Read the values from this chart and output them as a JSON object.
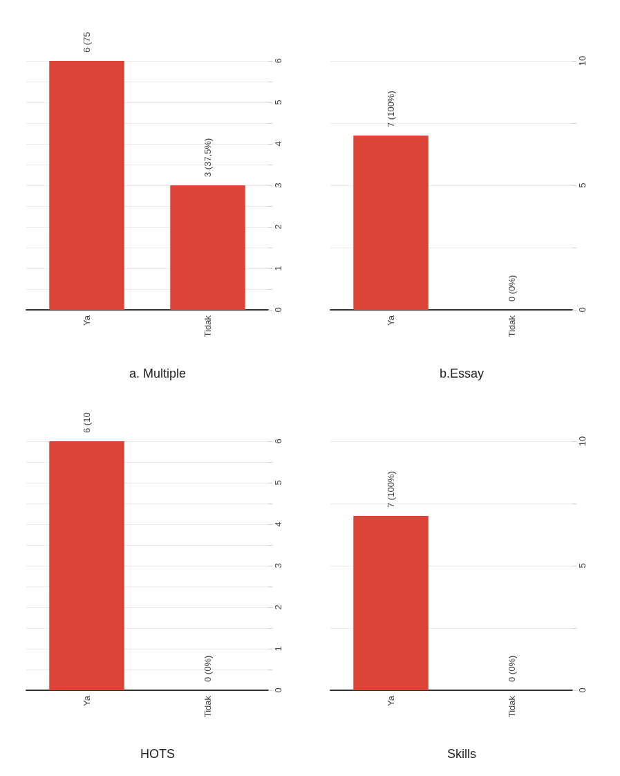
{
  "chart_data": [
    {
      "type": "bar",
      "title": "a. Multiple",
      "categories": [
        "Ya",
        "Tidak"
      ],
      "values": [
        6,
        3
      ],
      "color": "#db4437",
      "value_labels": [
        "6 (75",
        "3 (37,5%)"
      ],
      "ylim": [
        0,
        6
      ],
      "yticks": [
        0,
        {
          "value": 0.5,
          "label": null
        },
        1,
        {
          "value": 1.5,
          "label": null
        },
        2,
        {
          "value": 2.5,
          "label": null
        },
        3,
        {
          "value": 3.5,
          "label": null
        },
        4,
        {
          "value": 4.5,
          "label": null
        },
        5,
        {
          "value": 5.5,
          "label": null
        },
        6
      ],
      "grid": "y"
    },
    {
      "type": "bar",
      "title": "b.Essay",
      "categories": [
        "Ya",
        "Tidak"
      ],
      "values": [
        7,
        0
      ],
      "color": "#db4437",
      "value_labels": [
        "7 (100%)",
        "0 (0%)"
      ],
      "ylim": [
        0,
        10
      ],
      "yticks": [
        0,
        {
          "value": 2.5,
          "label": null
        },
        5,
        {
          "value": 7.5,
          "label": null
        },
        10
      ],
      "grid": "y"
    },
    {
      "type": "bar",
      "title": "HOTS",
      "categories": [
        "Ya",
        "Tidak"
      ],
      "values": [
        6,
        0
      ],
      "color": "#db4437",
      "value_labels": [
        "6 (10",
        "0 (0%)"
      ],
      "ylim": [
        0,
        6
      ],
      "yticks": [
        0,
        {
          "value": 0.5,
          "label": null
        },
        1,
        {
          "value": 1.5,
          "label": null
        },
        2,
        {
          "value": 2.5,
          "label": null
        },
        3,
        {
          "value": 3.5,
          "label": null
        },
        4,
        {
          "value": 4.5,
          "label": null
        },
        5,
        {
          "value": 5.5,
          "label": null
        },
        6
      ],
      "grid": "y"
    },
    {
      "type": "bar",
      "title": "Skills",
      "categories": [
        "Ya",
        "Tidak"
      ],
      "values": [
        7,
        0
      ],
      "color": "#db4437",
      "value_labels": [
        "7 (100%)",
        "0 (0%)"
      ],
      "ylim": [
        0,
        10
      ],
      "yticks": [
        0,
        {
          "value": 2.5,
          "label": null
        },
        5,
        {
          "value": 7.5,
          "label": null
        },
        10
      ],
      "grid": "y"
    }
  ]
}
